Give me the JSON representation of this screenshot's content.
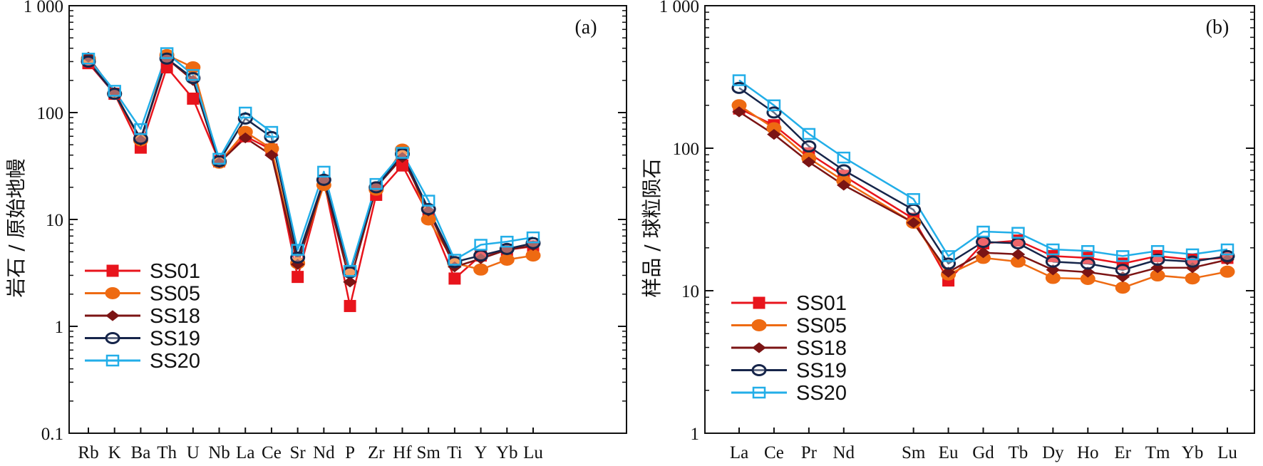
{
  "chart_data": [
    {
      "type": "line",
      "panel_label": "(a)",
      "ylabel": "岩石 / 原始地幔",
      "y_scale": "log",
      "ylim": [
        0.1,
        1000
      ],
      "y_ticks": [
        0.1,
        1,
        10,
        100,
        1000
      ],
      "y_tick_labels": [
        "0.1",
        "1",
        "10",
        "100",
        "1 000"
      ],
      "categories": [
        "Rb",
        "K",
        "Ba",
        "Th",
        "U",
        "Nb",
        "La",
        "Ce",
        "Sr",
        "Nd",
        "P",
        "Zr",
        "Hf",
        "Sm",
        "Ti",
        "Y",
        "Yb",
        "Lu"
      ],
      "legend_position": "bottom-left",
      "series": [
        {
          "name": "SS01",
          "color": "#e8141c",
          "marker": "square-filled",
          "values": [
            290,
            150,
            47,
            265,
            135,
            35,
            60,
            45,
            2.9,
            23,
            1.55,
            17,
            32,
            11,
            2.8,
            4.6,
            5.2,
            5.6
          ]
        },
        {
          "name": "SS05",
          "color": "#ee6a12",
          "marker": "circle-filled",
          "values": [
            320,
            150,
            55,
            345,
            265,
            34,
            66,
            46,
            3.9,
            21,
            3.2,
            19,
            45,
            10,
            3.9,
            3.4,
            4.2,
            4.6
          ]
        },
        {
          "name": "SS18",
          "color": "#7b1414",
          "marker": "diamond-filled",
          "values": [
            330,
            155,
            55,
            320,
            200,
            34,
            58,
            40,
            3.8,
            23,
            2.6,
            20,
            38,
            12,
            3.6,
            4.3,
            5.2,
            5.7
          ]
        },
        {
          "name": "SS19",
          "color": "#16254a",
          "marker": "circle-open",
          "values": [
            300,
            150,
            57,
            320,
            210,
            35,
            88,
            59,
            4.4,
            23.5,
            3.2,
            20,
            41,
            12.5,
            4.0,
            4.6,
            5.3,
            6.0
          ]
        },
        {
          "name": "SS20",
          "color": "#22aee8",
          "marker": "square-open",
          "values": [
            320,
            160,
            70,
            360,
            225,
            37,
            100,
            66,
            5.2,
            28,
            3.3,
            21.5,
            42,
            15,
            4.2,
            5.8,
            6.2,
            6.8
          ]
        }
      ]
    },
    {
      "type": "line",
      "panel_label": "(b)",
      "ylabel": "样品 / 球粒陨石",
      "y_scale": "log",
      "ylim": [
        1,
        1000
      ],
      "y_ticks": [
        1,
        10,
        100,
        1000
      ],
      "y_tick_labels": [
        "1",
        "10",
        "100",
        "1 000"
      ],
      "categories": [
        "La",
        "Ce",
        "Pr",
        "Nd",
        "Sm",
        "Eu",
        "Gd",
        "Tb",
        "Dy",
        "Ho",
        "Er",
        "Tm",
        "Yb",
        "Lu"
      ],
      "category_positions": [
        0,
        1,
        2,
        3,
        5,
        6,
        7,
        8,
        9,
        10,
        11,
        12,
        13,
        14
      ],
      "legend_position": "bottom-left",
      "series": [
        {
          "name": "SS01",
          "color": "#e8141c",
          "marker": "square-filled",
          "values": [
            190,
            145,
            92,
            64,
            32,
            11.8,
            21.5,
            22.5,
            17.5,
            17,
            15.5,
            17.5,
            16.5,
            17
          ]
        },
        {
          "name": "SS05",
          "color": "#ee6a12",
          "marker": "circle-filled",
          "values": [
            200,
            138,
            85,
            59,
            30,
            13,
            17,
            16,
            12.3,
            12.1,
            10.5,
            12.8,
            12.2,
            13.6
          ]
        },
        {
          "name": "SS18",
          "color": "#7b1414",
          "marker": "diamond-filled",
          "values": [
            180,
            125,
            80,
            55,
            30,
            13.5,
            18.5,
            18,
            14,
            13.5,
            12.5,
            14.5,
            14.5,
            16.5
          ]
        },
        {
          "name": "SS19",
          "color": "#16254a",
          "marker": "circle-open",
          "values": [
            265,
            178,
            103,
            70,
            37,
            15.5,
            22,
            21.5,
            16,
            15.5,
            14,
            16.5,
            16,
            17.5
          ]
        },
        {
          "name": "SS20",
          "color": "#22aee8",
          "marker": "square-open",
          "values": [
            300,
            200,
            126,
            86,
            44,
            17.5,
            26,
            25.5,
            19.5,
            19,
            17.5,
            19,
            18,
            19.5
          ]
        }
      ]
    }
  ]
}
